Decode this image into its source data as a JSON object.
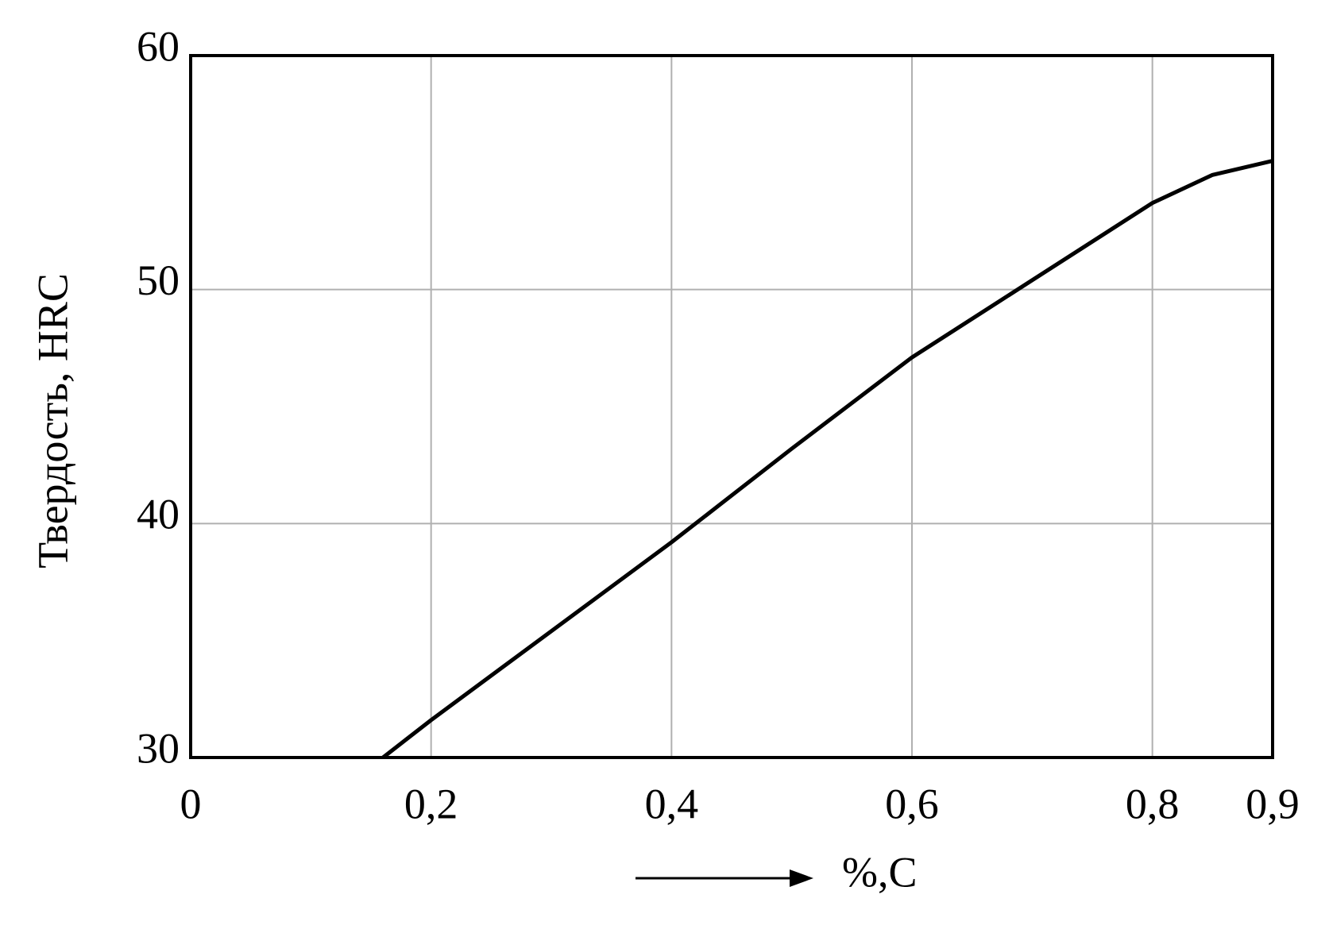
{
  "chart_data": {
    "type": "line",
    "y_label": "Твердость, HRC",
    "x_label": "%,C",
    "x": [
      0.16,
      0.2,
      0.3,
      0.4,
      0.5,
      0.6,
      0.7,
      0.8,
      0.85,
      0.9
    ],
    "series": [
      {
        "color": "#000000",
        "values": [
          30,
          31.6,
          35.4,
          39.2,
          43.2,
          47.1,
          50.4,
          53.7,
          54.9,
          55.5
        ]
      }
    ],
    "xlim": [
      0,
      0.9
    ],
    "ylim": [
      30,
      60
    ],
    "xticks": [
      0,
      {
        "value": 0.2,
        "label": "0,2"
      },
      {
        "value": 0.4,
        "label": "0,4"
      },
      {
        "value": 0.6,
        "label": "0,6"
      },
      {
        "value": 0.8,
        "label": "0,8"
      },
      {
        "value": 0.9,
        "label": "0,9"
      }
    ],
    "yticks": [
      30,
      40,
      50,
      60
    ],
    "grid": true
  }
}
